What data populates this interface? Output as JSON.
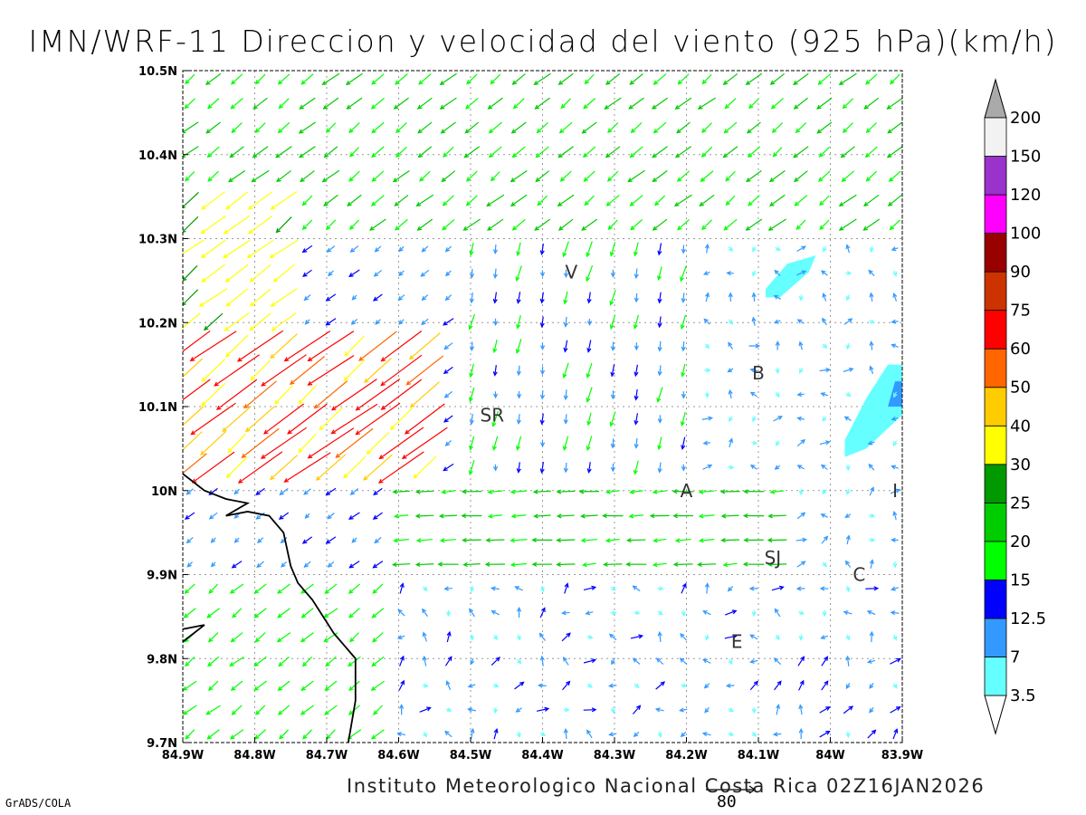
{
  "chart_title": "IMN/WRF-11 Direccion y velocidad del viento (925 hPa)(km/h)",
  "footer_text": "Instituto Meteorologico Nacional Costa Rica 02Z16JAN2026",
  "credit": "GrADS/COLA",
  "chart_data": {
    "type": "vector-field",
    "title": "IMN/WRF-11 Direccion y velocidad del viento (925 hPa)(km/h)",
    "xlim": [
      -84.9,
      -83.9
    ],
    "ylim": [
      9.7,
      10.5
    ],
    "x_ticks": [
      "84.9W",
      "84.8W",
      "84.7W",
      "84.6W",
      "84.5W",
      "84.4W",
      "84.3W",
      "84.2W",
      "84.1W",
      "84W",
      "83.9W"
    ],
    "y_ticks": [
      "9.7N",
      "9.8N",
      "9.9N",
      "10N",
      "10.1N",
      "10.2N",
      "10.3N",
      "10.4N",
      "10.5N"
    ],
    "grid": true,
    "reference_vector": "80",
    "colorbar": {
      "levels": [
        "3.5",
        "7",
        "12.5",
        "15",
        "20",
        "25",
        "30",
        "40",
        "50",
        "60",
        "75",
        "90",
        "100",
        "120",
        "150",
        "200"
      ],
      "colors": [
        "#ffffff",
        "#66ffff",
        "#3399ff",
        "#0000ff",
        "#00ff00",
        "#00cc00",
        "#009900",
        "#ffff00",
        "#ffcc00",
        "#ff6600",
        "#ff0000",
        "#cc3300",
        "#990000",
        "#ff00ff",
        "#9933cc",
        "#f2f2f2",
        "#aaaaaa"
      ]
    },
    "stations": [
      {
        "label": "V",
        "lon": -84.36,
        "lat": 10.26
      },
      {
        "label": "SR",
        "lon": -84.47,
        "lat": 10.09
      },
      {
        "label": "B",
        "lon": -84.1,
        "lat": 10.14
      },
      {
        "label": "A",
        "lon": -84.2,
        "lat": 10.0
      },
      {
        "label": "I",
        "lon": -83.91,
        "lat": 10.0
      },
      {
        "label": "SJ",
        "lon": -84.08,
        "lat": 9.92
      },
      {
        "label": "C",
        "lon": -83.96,
        "lat": 9.9
      },
      {
        "label": "E",
        "lon": -84.13,
        "lat": 9.82
      }
    ],
    "shaded_regions": [
      {
        "level": "3.5",
        "color": "#66ffff",
        "points": [
          [
            -84.09,
            10.24
          ],
          [
            -84.06,
            10.27
          ],
          [
            -84.02,
            10.28
          ],
          [
            -84.03,
            10.26
          ],
          [
            -84.07,
            10.23
          ],
          [
            -84.09,
            10.23
          ]
        ]
      },
      {
        "level": "3.5",
        "color": "#66ffff",
        "points": [
          [
            -83.92,
            10.15
          ],
          [
            -83.9,
            10.15
          ],
          [
            -83.9,
            10.09
          ],
          [
            -83.95,
            10.05
          ],
          [
            -83.98,
            10.04
          ],
          [
            -83.98,
            10.06
          ],
          [
            -83.95,
            10.11
          ]
        ]
      },
      {
        "level": "7",
        "color": "#3399ff",
        "points": [
          [
            -83.91,
            10.13
          ],
          [
            -83.9,
            10.13
          ],
          [
            -83.9,
            10.1
          ],
          [
            -83.92,
            10.1
          ]
        ]
      }
    ],
    "coastline": [
      [
        [
          -84.9,
          10.02
        ],
        [
          -84.87,
          10.0
        ],
        [
          -84.84,
          9.99
        ],
        [
          -84.81,
          9.985
        ],
        [
          -84.84,
          9.97
        ],
        [
          -84.81,
          9.975
        ],
        [
          -84.78,
          9.97
        ],
        [
          -84.76,
          9.95
        ],
        [
          -84.75,
          9.91
        ],
        [
          -84.74,
          9.89
        ],
        [
          -84.72,
          9.87
        ],
        [
          -84.69,
          9.83
        ],
        [
          -84.66,
          9.8
        ],
        [
          -84.66,
          9.75
        ],
        [
          -84.67,
          9.7
        ]
      ],
      [
        [
          -84.9,
          9.82
        ],
        [
          -84.87,
          9.84
        ],
        [
          -84.9,
          9.835
        ]
      ]
    ],
    "wind_field_regions": [
      {
        "area": "north",
        "lon": [
          -84.9,
          -83.9
        ],
        "lat": [
          10.3,
          10.5
        ],
        "direction_from": "NE",
        "speed_kmh": "15-25"
      },
      {
        "area": "northwest",
        "lon": [
          -84.9,
          -84.75
        ],
        "lat": [
          10.2,
          10.35
        ],
        "direction_from": "NE",
        "speed_kmh": "25-40"
      },
      {
        "area": "west-jet",
        "lon": [
          -84.9,
          -84.55
        ],
        "lat": [
          10.0,
          10.2
        ],
        "direction_from": "NE",
        "speed_kmh": "30-75"
      },
      {
        "area": "central",
        "lon": [
          -84.5,
          -84.2
        ],
        "lat": [
          10.0,
          10.3
        ],
        "direction_from": "N",
        "speed_kmh": "7-20"
      },
      {
        "area": "east",
        "lon": [
          -84.2,
          -83.9
        ],
        "lat": [
          9.9,
          10.3
        ],
        "direction_from": "variable",
        "speed_kmh": "3.5-12.5"
      },
      {
        "area": "valley-jet",
        "lon": [
          -84.6,
          -84.05
        ],
        "lat": [
          9.9,
          10.0
        ],
        "direction_from": "E",
        "speed_kmh": "15-25"
      },
      {
        "area": "southwest",
        "lon": [
          -84.9,
          -84.6
        ],
        "lat": [
          9.7,
          9.9
        ],
        "direction_from": "NE",
        "speed_kmh": "15-20"
      },
      {
        "area": "south",
        "lon": [
          -84.6,
          -83.9
        ],
        "lat": [
          9.7,
          9.9
        ],
        "direction_from": "variable",
        "speed_kmh": "3.5-15"
      }
    ]
  }
}
